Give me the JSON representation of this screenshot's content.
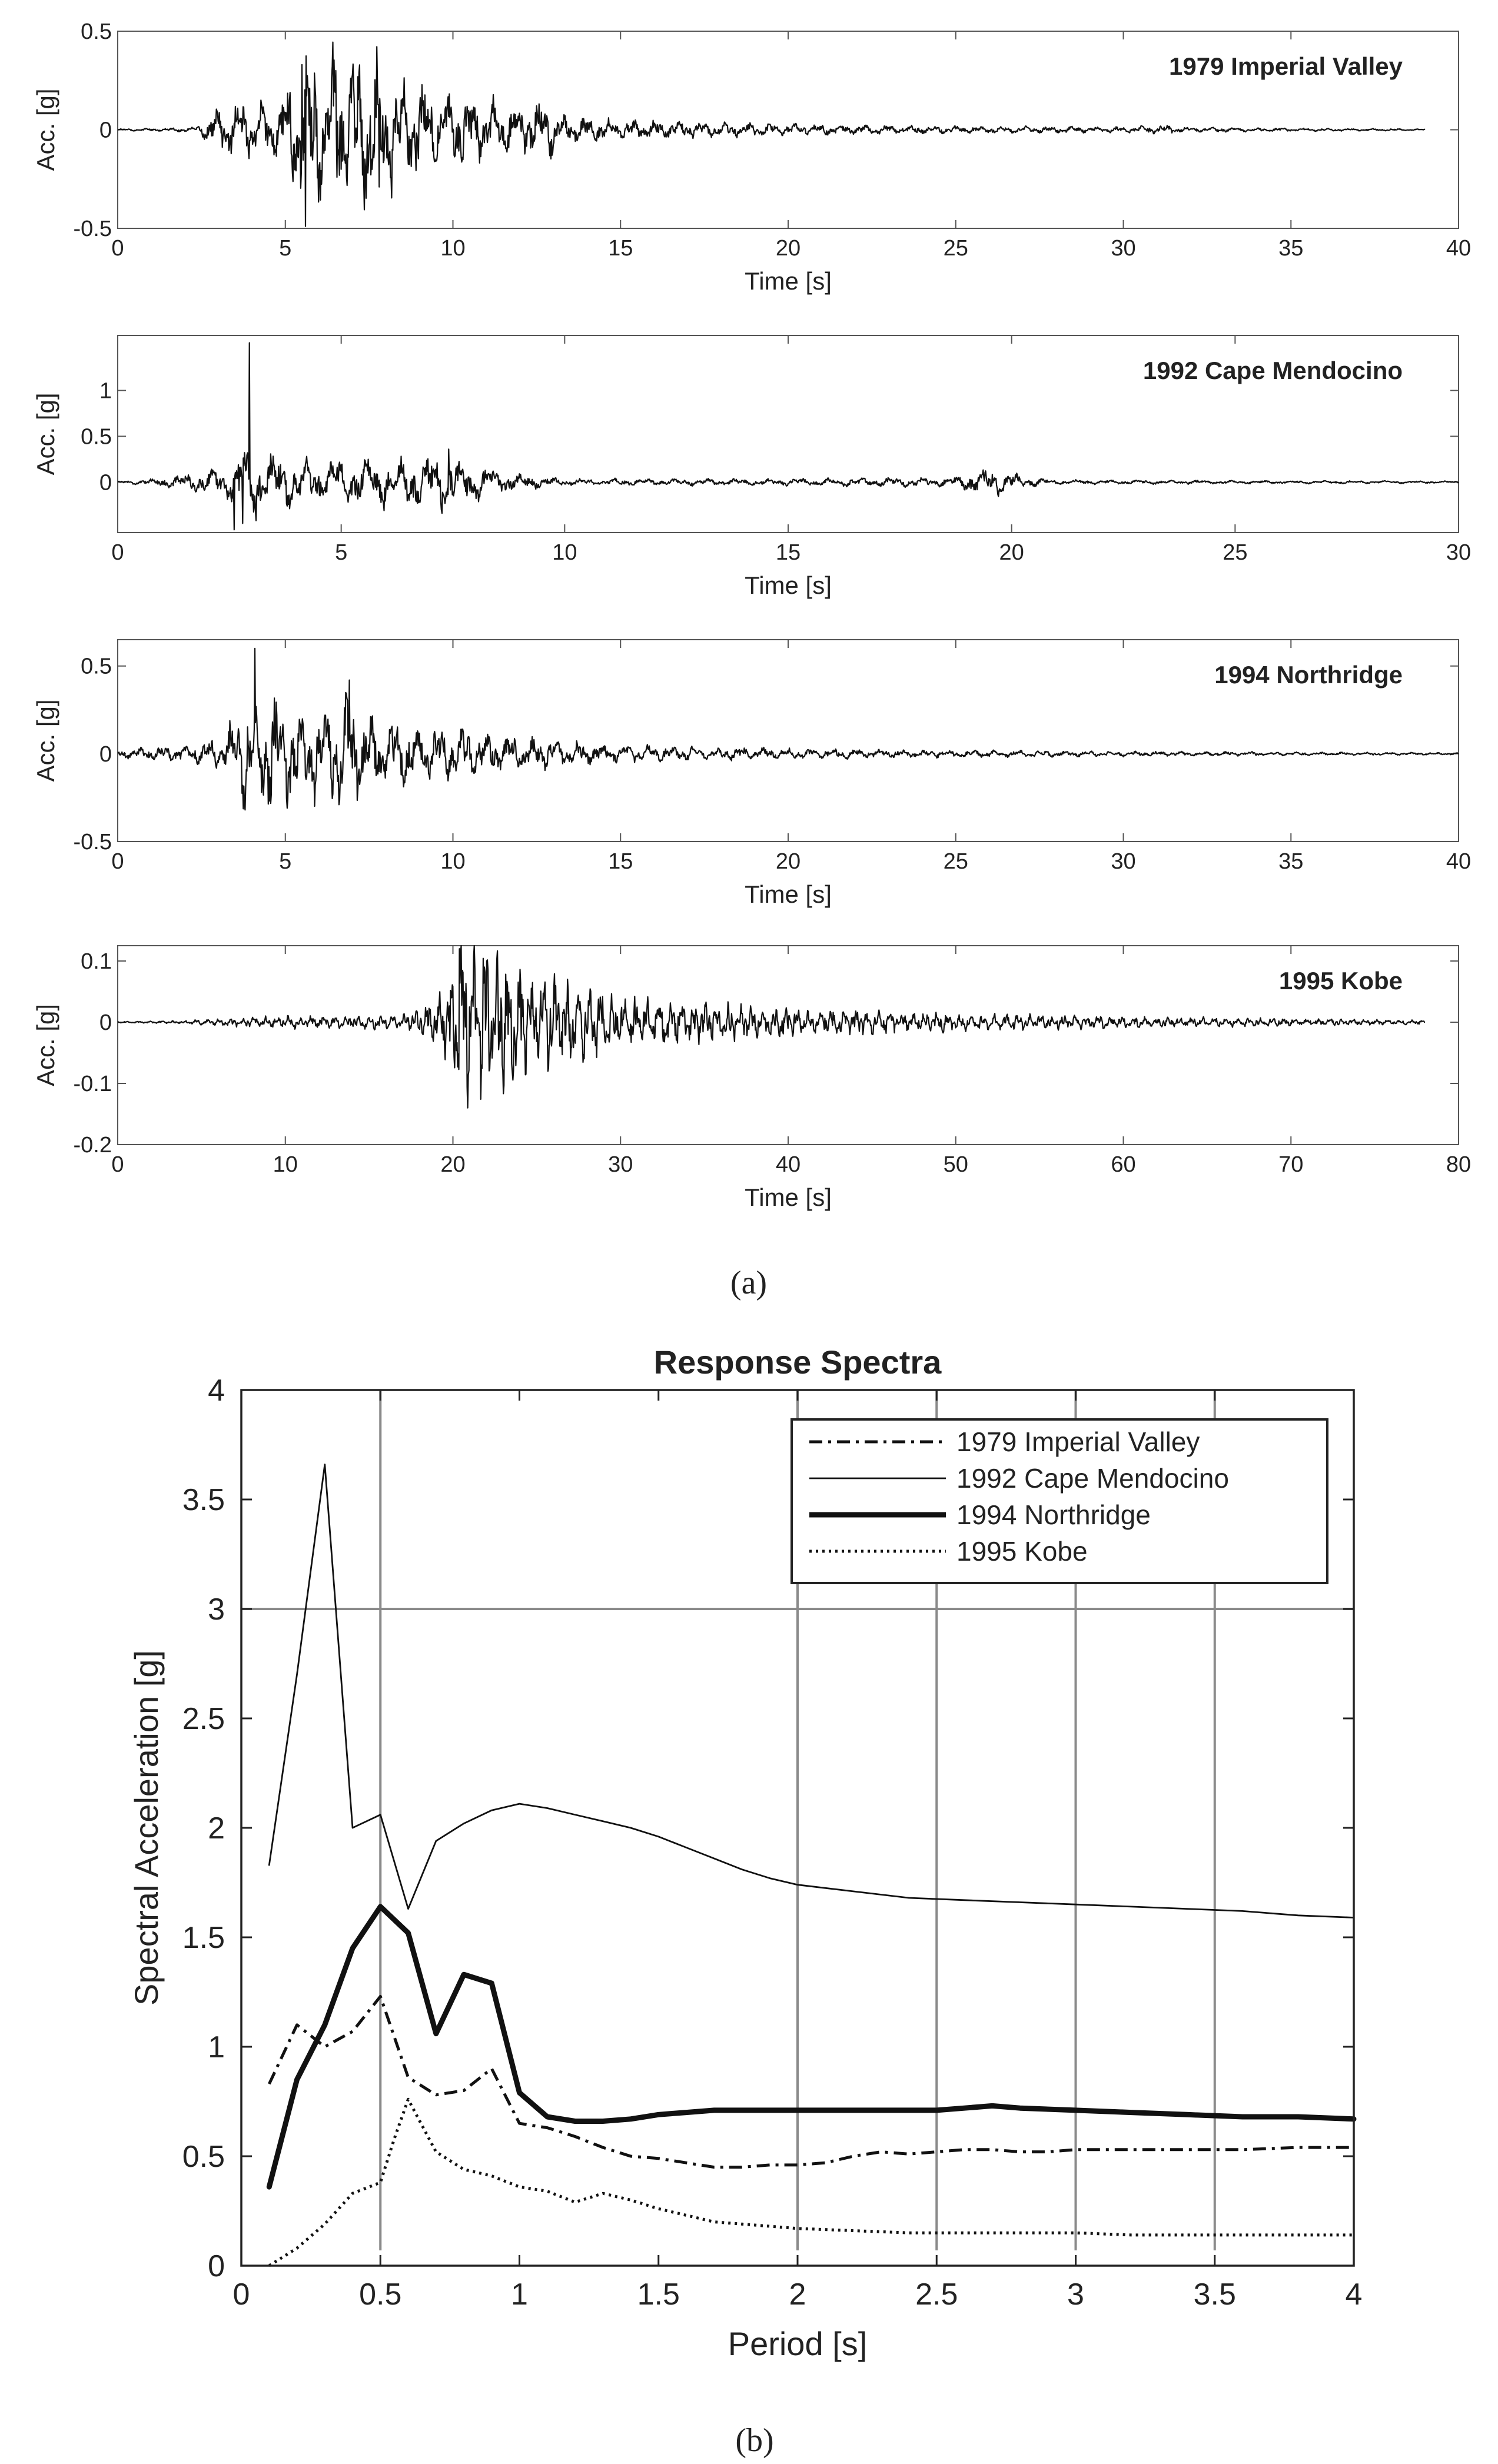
{
  "subfigure_labels": {
    "a": "(a)",
    "b": "(b)"
  },
  "chart_data": [
    {
      "type": "line",
      "title": "1979 Imperial Valley",
      "xlabel": "Time [s]",
      "ylabel": "Acc. [g]",
      "xlim": [
        0,
        40
      ],
      "ylim": [
        -0.5,
        0.5
      ],
      "xticks": [
        "0",
        "5",
        "10",
        "15",
        "20",
        "25",
        "30",
        "35",
        "40"
      ],
      "yticks": [
        "0.5",
        "0",
        "-0.5"
      ],
      "duration": 39,
      "envelope": [
        [
          0,
          0.003
        ],
        [
          2.3,
          0.01
        ],
        [
          3.0,
          0.09
        ],
        [
          4.0,
          0.12
        ],
        [
          4.8,
          0.12
        ],
        [
          5.3,
          0.25
        ],
        [
          5.7,
          0.38
        ],
        [
          6.3,
          0.32
        ],
        [
          7.7,
          0.32
        ],
        [
          8.5,
          0.22
        ],
        [
          10,
          0.15
        ],
        [
          11.5,
          0.12
        ],
        [
          12.8,
          0.12
        ],
        [
          13.3,
          0.06
        ],
        [
          15,
          0.04
        ],
        [
          20,
          0.025
        ],
        [
          25,
          0.015
        ],
        [
          30,
          0.012
        ],
        [
          31.3,
          0.02
        ],
        [
          32,
          0.01
        ],
        [
          39,
          0.003
        ]
      ],
      "peaks": [
        {
          "t": 5.6,
          "value": -0.49
        },
        {
          "t": 5.5,
          "value": 0.33
        },
        {
          "t": 6.5,
          "value": 0.3
        },
        {
          "t": 7.8,
          "value": -0.29
        },
        {
          "t": 7.2,
          "value": 0.29
        }
      ]
    },
    {
      "type": "line",
      "title": "1992 Cape Mendocino",
      "xlabel": "Time [s]",
      "ylabel": "Acc. [g]",
      "xlim": [
        0,
        30
      ],
      "ylim": [
        -0.55,
        1.6
      ],
      "xticks": [
        "0",
        "5",
        "10",
        "15",
        "20",
        "25",
        "30"
      ],
      "yticks": [
        "1",
        "0.5",
        "0"
      ],
      "duration": 30,
      "envelope": [
        [
          0,
          0.01
        ],
        [
          0.8,
          0.03
        ],
        [
          1.5,
          0.07
        ],
        [
          2.4,
          0.15
        ],
        [
          2.9,
          0.35
        ],
        [
          3.3,
          0.25
        ],
        [
          4.5,
          0.2
        ],
        [
          6,
          0.22
        ],
        [
          7.5,
          0.26
        ],
        [
          8.5,
          0.1
        ],
        [
          10,
          0.03
        ],
        [
          15,
          0.03
        ],
        [
          18.8,
          0.05
        ],
        [
          19.5,
          0.15
        ],
        [
          20.2,
          0.06
        ],
        [
          21,
          0.02
        ],
        [
          30,
          0.01
        ]
      ],
      "peaks": [
        {
          "t": 2.95,
          "value": 1.52
        },
        {
          "t": 2.6,
          "value": -0.52
        },
        {
          "t": 2.8,
          "value": -0.45
        },
        {
          "t": 3.1,
          "value": -0.42
        },
        {
          "t": 7.4,
          "value": 0.36
        }
      ]
    },
    {
      "type": "line",
      "title": "1994 Northridge",
      "xlabel": "Time [s]",
      "ylabel": "Acc. [g]",
      "xlim": [
        0,
        40
      ],
      "ylim": [
        -0.5,
        0.65
      ],
      "xticks": [
        "0",
        "5",
        "10",
        "15",
        "20",
        "25",
        "30",
        "35",
        "40"
      ],
      "yticks": [
        "0.5",
        "0",
        "-0.5"
      ],
      "duration": 40,
      "envelope": [
        [
          0,
          0.02
        ],
        [
          2,
          0.04
        ],
        [
          3.2,
          0.08
        ],
        [
          3.5,
          0.2
        ],
        [
          4.5,
          0.3
        ],
        [
          5.5,
          0.2
        ],
        [
          6.8,
          0.3
        ],
        [
          7.5,
          0.18
        ],
        [
          9,
          0.15
        ],
        [
          10.5,
          0.12
        ],
        [
          12.5,
          0.07
        ],
        [
          15,
          0.04
        ],
        [
          20,
          0.025
        ],
        [
          25,
          0.018
        ],
        [
          30,
          0.012
        ],
        [
          40,
          0.005
        ]
      ],
      "peaks": [
        {
          "t": 4.1,
          "value": 0.6
        },
        {
          "t": 3.8,
          "value": -0.32
        },
        {
          "t": 6.6,
          "value": -0.29
        },
        {
          "t": 6.9,
          "value": 0.42
        }
      ]
    },
    {
      "type": "line",
      "title": "1995 Kobe",
      "xlabel": "Time [s]",
      "ylabel": "Acc. [g]",
      "xlim": [
        0,
        80
      ],
      "ylim": [
        -0.2,
        0.125
      ],
      "xticks": [
        "0",
        "10",
        "20",
        "30",
        "40",
        "50",
        "60",
        "70",
        "80"
      ],
      "yticks": [
        "0.1",
        "0",
        "-0.1",
        "-0.2"
      ],
      "duration": 78,
      "envelope": [
        [
          0,
          0.001
        ],
        [
          4,
          0.002
        ],
        [
          6,
          0.005
        ],
        [
          10,
          0.008
        ],
        [
          17,
          0.01
        ],
        [
          19,
          0.03
        ],
        [
          20,
          0.1
        ],
        [
          21,
          0.11
        ],
        [
          23,
          0.09
        ],
        [
          26,
          0.06
        ],
        [
          30,
          0.04
        ],
        [
          35,
          0.025
        ],
        [
          40,
          0.02
        ],
        [
          50,
          0.012
        ],
        [
          60,
          0.008
        ],
        [
          70,
          0.005
        ],
        [
          78,
          0.003
        ]
      ],
      "peaks": [
        {
          "t": 20.4,
          "value": 0.12
        },
        {
          "t": 20.9,
          "value": -0.14
        },
        {
          "t": 22.0,
          "value": 0.1
        }
      ]
    },
    {
      "type": "line",
      "title": "Response Spectra",
      "xlabel": "Period [s]",
      "ylabel": "Spectral Acceleration [g]",
      "xlim": [
        0,
        4
      ],
      "ylim": [
        0,
        4
      ],
      "xticks": [
        "0",
        "0.5",
        "1",
        "1.5",
        "2",
        "2.5",
        "3",
        "3.5",
        "4"
      ],
      "yticks": [
        "0",
        "0.5",
        "1",
        "1.5",
        "2",
        "2.5",
        "3",
        "3.5",
        "4"
      ],
      "gridlines": {
        "x": [
          0.5,
          2,
          2.5,
          3,
          3.5
        ],
        "y": [
          3
        ]
      },
      "legend_position": "top-right",
      "series": [
        {
          "name": "1979 Imperial Valley",
          "style": "dashdot",
          "x": [
            0.1,
            0.2,
            0.3,
            0.4,
            0.5,
            0.6,
            0.7,
            0.8,
            0.9,
            1.0,
            1.1,
            1.2,
            1.3,
            1.4,
            1.5,
            1.6,
            1.7,
            1.8,
            1.9,
            2.0,
            2.1,
            2.2,
            2.3,
            2.4,
            2.5,
            2.6,
            2.7,
            2.8,
            2.9,
            3.0,
            3.2,
            3.4,
            3.6,
            3.8,
            4.0
          ],
          "y": [
            0.83,
            1.1,
            1.0,
            1.07,
            1.23,
            0.86,
            0.78,
            0.8,
            0.9,
            0.65,
            0.63,
            0.59,
            0.54,
            0.5,
            0.49,
            0.47,
            0.45,
            0.45,
            0.46,
            0.46,
            0.47,
            0.5,
            0.52,
            0.51,
            0.52,
            0.53,
            0.53,
            0.52,
            0.52,
            0.53,
            0.53,
            0.53,
            0.53,
            0.54,
            0.54
          ]
        },
        {
          "name": "1992 Cape Mendocino",
          "style": "thin",
          "x": [
            0.1,
            0.2,
            0.3,
            0.4,
            0.5,
            0.6,
            0.7,
            0.8,
            0.9,
            1.0,
            1.1,
            1.2,
            1.3,
            1.4,
            1.5,
            1.6,
            1.7,
            1.8,
            1.9,
            2.0,
            2.2,
            2.4,
            2.6,
            2.8,
            3.0,
            3.2,
            3.4,
            3.6,
            3.8,
            4.0
          ],
          "y": [
            1.83,
            2.7,
            3.66,
            2.0,
            2.06,
            1.63,
            1.94,
            2.02,
            2.08,
            2.11,
            2.09,
            2.06,
            2.03,
            2.0,
            1.96,
            1.91,
            1.86,
            1.81,
            1.77,
            1.74,
            1.71,
            1.68,
            1.67,
            1.66,
            1.65,
            1.64,
            1.63,
            1.62,
            1.6,
            1.59
          ]
        },
        {
          "name": "1994 Northridge",
          "style": "thick",
          "x": [
            0.1,
            0.2,
            0.3,
            0.4,
            0.5,
            0.6,
            0.7,
            0.8,
            0.9,
            1.0,
            1.1,
            1.2,
            1.3,
            1.4,
            1.5,
            1.6,
            1.7,
            1.8,
            1.9,
            2.0,
            2.2,
            2.4,
            2.5,
            2.6,
            2.7,
            2.8,
            3.0,
            3.2,
            3.4,
            3.6,
            3.8,
            4.0
          ],
          "y": [
            0.36,
            0.85,
            1.1,
            1.45,
            1.64,
            1.52,
            1.06,
            1.33,
            1.29,
            0.79,
            0.68,
            0.66,
            0.66,
            0.67,
            0.69,
            0.7,
            0.71,
            0.71,
            0.71,
            0.71,
            0.71,
            0.71,
            0.71,
            0.72,
            0.73,
            0.72,
            0.71,
            0.7,
            0.69,
            0.68,
            0.68,
            0.67
          ]
        },
        {
          "name": "1995 Kobe",
          "style": "dotted",
          "x": [
            0.1,
            0.2,
            0.3,
            0.4,
            0.5,
            0.55,
            0.6,
            0.7,
            0.8,
            0.9,
            1.0,
            1.1,
            1.2,
            1.3,
            1.4,
            1.5,
            1.6,
            1.7,
            1.8,
            1.9,
            2.0,
            2.2,
            2.4,
            2.6,
            2.8,
            3.0,
            3.2,
            3.4,
            3.6,
            3.8,
            4.0
          ],
          "y": [
            0.0,
            0.08,
            0.19,
            0.33,
            0.38,
            0.58,
            0.76,
            0.52,
            0.44,
            0.41,
            0.36,
            0.34,
            0.29,
            0.33,
            0.3,
            0.26,
            0.23,
            0.2,
            0.19,
            0.18,
            0.17,
            0.16,
            0.15,
            0.15,
            0.15,
            0.15,
            0.14,
            0.14,
            0.14,
            0.14,
            0.14
          ]
        }
      ]
    }
  ]
}
